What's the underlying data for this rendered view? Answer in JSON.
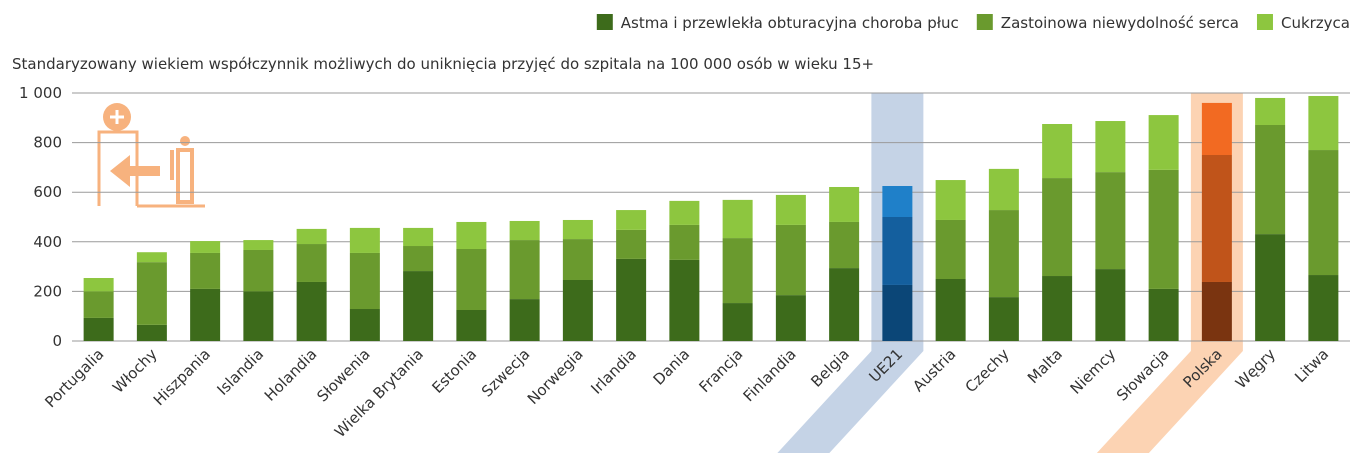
{
  "chart_data": {
    "type": "stacked_bar",
    "subtitle": "Standaryzowany wiekiem współczynnik możliwych do uniknięcia przyjęć do szpitala na 100 000 osób w wieku 15+",
    "categories": [
      "Portugalia",
      "Włochy",
      "Hiszpania",
      "Islandia",
      "Holandia",
      "Słowenia",
      "Wielka Brytania",
      "Estonia",
      "Szwecja",
      "Norwegia",
      "Irlandia",
      "Dania",
      "Francja",
      "Finlandia",
      "Belgia",
      "UE21",
      "Austria",
      "Czechy",
      "Malta",
      "Niemcy",
      "Słowacja",
      "Polska",
      "Węgry",
      "Litwa"
    ],
    "series": [
      {
        "name": "Astma i przewlekła obturacyjna choroba płuc",
        "color": "#3d6b1b",
        "values": [
          93,
          65,
          210,
          200,
          238,
          129,
          282,
          125,
          169,
          246,
          331,
          327,
          153,
          185,
          294,
          226,
          250,
          177,
          262,
          290,
          210,
          238,
          431,
          266
        ]
      },
      {
        "name": "Zastoinowa niewydolność serca",
        "color": "#6a9a2e",
        "values": [
          107,
          253,
          145,
          167,
          153,
          226,
          101,
          246,
          238,
          165,
          117,
          141,
          262,
          283,
          186,
          274,
          238,
          351,
          395,
          391,
          480,
          512,
          440,
          504
        ]
      },
      {
        "name": "Cukrzyca",
        "color": "#8dc63f",
        "values": [
          54,
          40,
          48,
          40,
          61,
          101,
          73,
          109,
          77,
          77,
          80,
          97,
          154,
          121,
          141,
          125,
          161,
          166,
          218,
          206,
          221,
          210,
          109,
          218
        ]
      }
    ],
    "highlights": [
      {
        "category": "UE21",
        "band_color": "#c5d3e6",
        "colors": [
          "#0b4677",
          "#145f9e",
          "#1f80c9"
        ]
      },
      {
        "category": "Polska",
        "band_color": "#fcd3b3",
        "colors": [
          "#7a3410",
          "#c0541a",
          "#f26a22"
        ]
      }
    ],
    "ylim": [
      0,
      1000
    ],
    "yticks": [
      0,
      200,
      400,
      600,
      800,
      {
        "value": 1000,
        "label": "1 000"
      }
    ],
    "grid": true,
    "legend": "top-right"
  }
}
